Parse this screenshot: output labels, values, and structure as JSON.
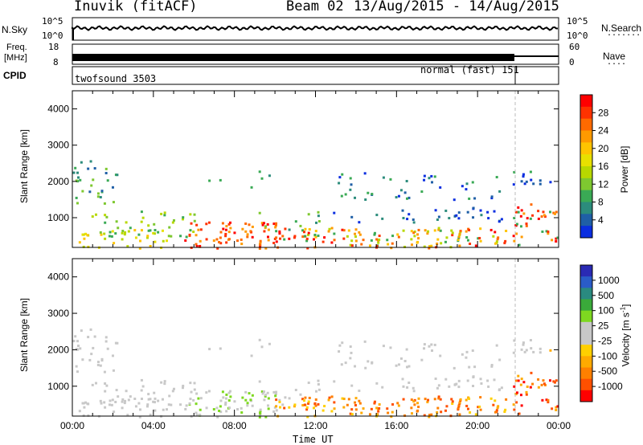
{
  "header": {
    "station": "Inuvik (fitACF)",
    "beam": "Beam 02",
    "dates": "13/Aug/2015 - 14/Aug/2015"
  },
  "nsky": {
    "label": "N.Sky",
    "yticks": [
      "10^5",
      "10^0"
    ],
    "right_label": "N.Search",
    "right_ticks": [
      "10^5",
      "10^0"
    ],
    "dots": "......."
  },
  "freq": {
    "label_line1": "Freq.",
    "label_line2": "[MHz]",
    "yticks": [
      "18",
      "8"
    ],
    "right_label": "Nave",
    "right_ticks": [
      "60",
      "0"
    ],
    "dots": "...."
  },
  "cpid": {
    "label": "CPID",
    "mode1": "twofsound 3503",
    "mode2": "normal (fast) 151"
  },
  "chart_data": [
    {
      "type": "heatmap",
      "panel": "power",
      "ylabel": "Slant Range [km]",
      "yticks": [
        1000,
        2000,
        3000,
        4000
      ],
      "ylim": [
        180,
        4500
      ],
      "x_ticks": [
        "00:00",
        "04:00",
        "08:00",
        "12:00",
        "16:00",
        "20:00",
        "00:00"
      ],
      "xlim_hours": [
        0,
        24
      ],
      "colorbar": {
        "label": "Power [dB]",
        "ticks": [
          "28",
          "24",
          "20",
          "16",
          "12",
          "8",
          "4"
        ],
        "colors": [
          "#ff0000",
          "#ff3200",
          "#ff6a00",
          "#ff9a00",
          "#ffc400",
          "#e8e000",
          "#b8d800",
          "#7ec830",
          "#3aaa55",
          "#2c8c7c",
          "#1f5fa6",
          "#0a2ee0"
        ]
      }
    },
    {
      "type": "heatmap",
      "panel": "velocity",
      "ylabel": "Slant Range [km]",
      "yticks": [
        1000,
        2000,
        3000,
        4000
      ],
      "ylim": [
        180,
        4500
      ],
      "xlabel": "Time UT",
      "x_ticks": [
        "00:00",
        "04:00",
        "08:00",
        "12:00",
        "16:00",
        "20:00",
        "00:00"
      ],
      "xlim_hours": [
        0,
        24
      ],
      "colorbar": {
        "label": "Velocity [m s^-1]",
        "ticks": [
          "1000",
          "500",
          "100",
          "25",
          "-25",
          "-100",
          "-500",
          "-1000"
        ],
        "colors": [
          "#2a2ab4",
          "#2a5cc8",
          "#2a8a80",
          "#3aaa3a",
          "#7ed820",
          "#c8c8c8",
          "#c8c8c8",
          "#ffd000",
          "#ffaa00",
          "#ff8000",
          "#ff5000",
          "#ff0000"
        ]
      }
    }
  ]
}
